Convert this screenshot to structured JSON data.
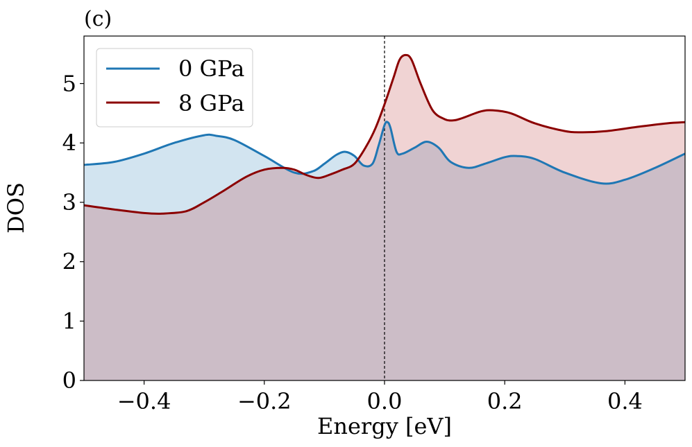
{
  "chart_data": {
    "type": "area",
    "panel_label": "(c)",
    "xlabel": "Energy [eV]",
    "ylabel": "DOS",
    "xlim": [
      -0.5,
      0.5
    ],
    "ylim": [
      0,
      5.8
    ],
    "x_ticks": [
      {
        "value": -0.4,
        "label": "−0.4"
      },
      {
        "value": -0.2,
        "label": "−0.2"
      },
      {
        "value": 0.0,
        "label": "0.0"
      },
      {
        "value": 0.2,
        "label": "0.2"
      },
      {
        "value": 0.4,
        "label": "0.4"
      }
    ],
    "y_ticks": [
      {
        "value": 0,
        "label": "0"
      },
      {
        "value": 1,
        "label": "1"
      },
      {
        "value": 2,
        "label": "2"
      },
      {
        "value": 3,
        "label": "3"
      },
      {
        "value": 4,
        "label": "4"
      },
      {
        "value": 5,
        "label": "5"
      }
    ],
    "fermi_level": 0.0,
    "legend_position": "upper-left",
    "series": [
      {
        "name": "0 GPa",
        "color": "#1f77b4",
        "fill_color": "#1f77b4",
        "x": [
          -0.5,
          -0.45,
          -0.4,
          -0.35,
          -0.3,
          -0.28,
          -0.25,
          -0.2,
          -0.15,
          -0.12,
          -0.1,
          -0.08,
          -0.065,
          -0.05,
          -0.035,
          -0.02,
          -0.01,
          0.0,
          0.005,
          0.01,
          0.02,
          0.03,
          0.05,
          0.07,
          0.09,
          0.11,
          0.14,
          0.17,
          0.2,
          0.22,
          0.25,
          0.3,
          0.36,
          0.4,
          0.45,
          0.5
        ],
        "y": [
          3.63,
          3.68,
          3.82,
          4.0,
          4.13,
          4.12,
          4.05,
          3.78,
          3.5,
          3.52,
          3.65,
          3.8,
          3.85,
          3.78,
          3.62,
          3.65,
          3.95,
          4.3,
          4.35,
          4.25,
          3.85,
          3.82,
          3.92,
          4.02,
          3.92,
          3.68,
          3.58,
          3.66,
          3.76,
          3.78,
          3.73,
          3.5,
          3.32,
          3.38,
          3.58,
          3.82
        ]
      },
      {
        "name": "8 GPa",
        "color": "#8b0000",
        "fill_color": "#b22222",
        "x": [
          -0.5,
          -0.45,
          -0.4,
          -0.37,
          -0.33,
          -0.3,
          -0.27,
          -0.23,
          -0.2,
          -0.17,
          -0.15,
          -0.13,
          -0.11,
          -0.09,
          -0.07,
          -0.05,
          -0.03,
          -0.015,
          0.0,
          0.015,
          0.025,
          0.035,
          0.045,
          0.06,
          0.08,
          0.1,
          0.115,
          0.13,
          0.16,
          0.18,
          0.21,
          0.25,
          0.3,
          0.33,
          0.37,
          0.42,
          0.47,
          0.5
        ],
        "y": [
          2.95,
          2.88,
          2.82,
          2.81,
          2.85,
          3.0,
          3.18,
          3.43,
          3.55,
          3.58,
          3.55,
          3.46,
          3.41,
          3.47,
          3.55,
          3.65,
          3.95,
          4.25,
          4.65,
          5.1,
          5.4,
          5.48,
          5.4,
          5.0,
          4.55,
          4.4,
          4.38,
          4.42,
          4.53,
          4.55,
          4.5,
          4.33,
          4.2,
          4.18,
          4.2,
          4.27,
          4.33,
          4.35
        ]
      }
    ]
  }
}
